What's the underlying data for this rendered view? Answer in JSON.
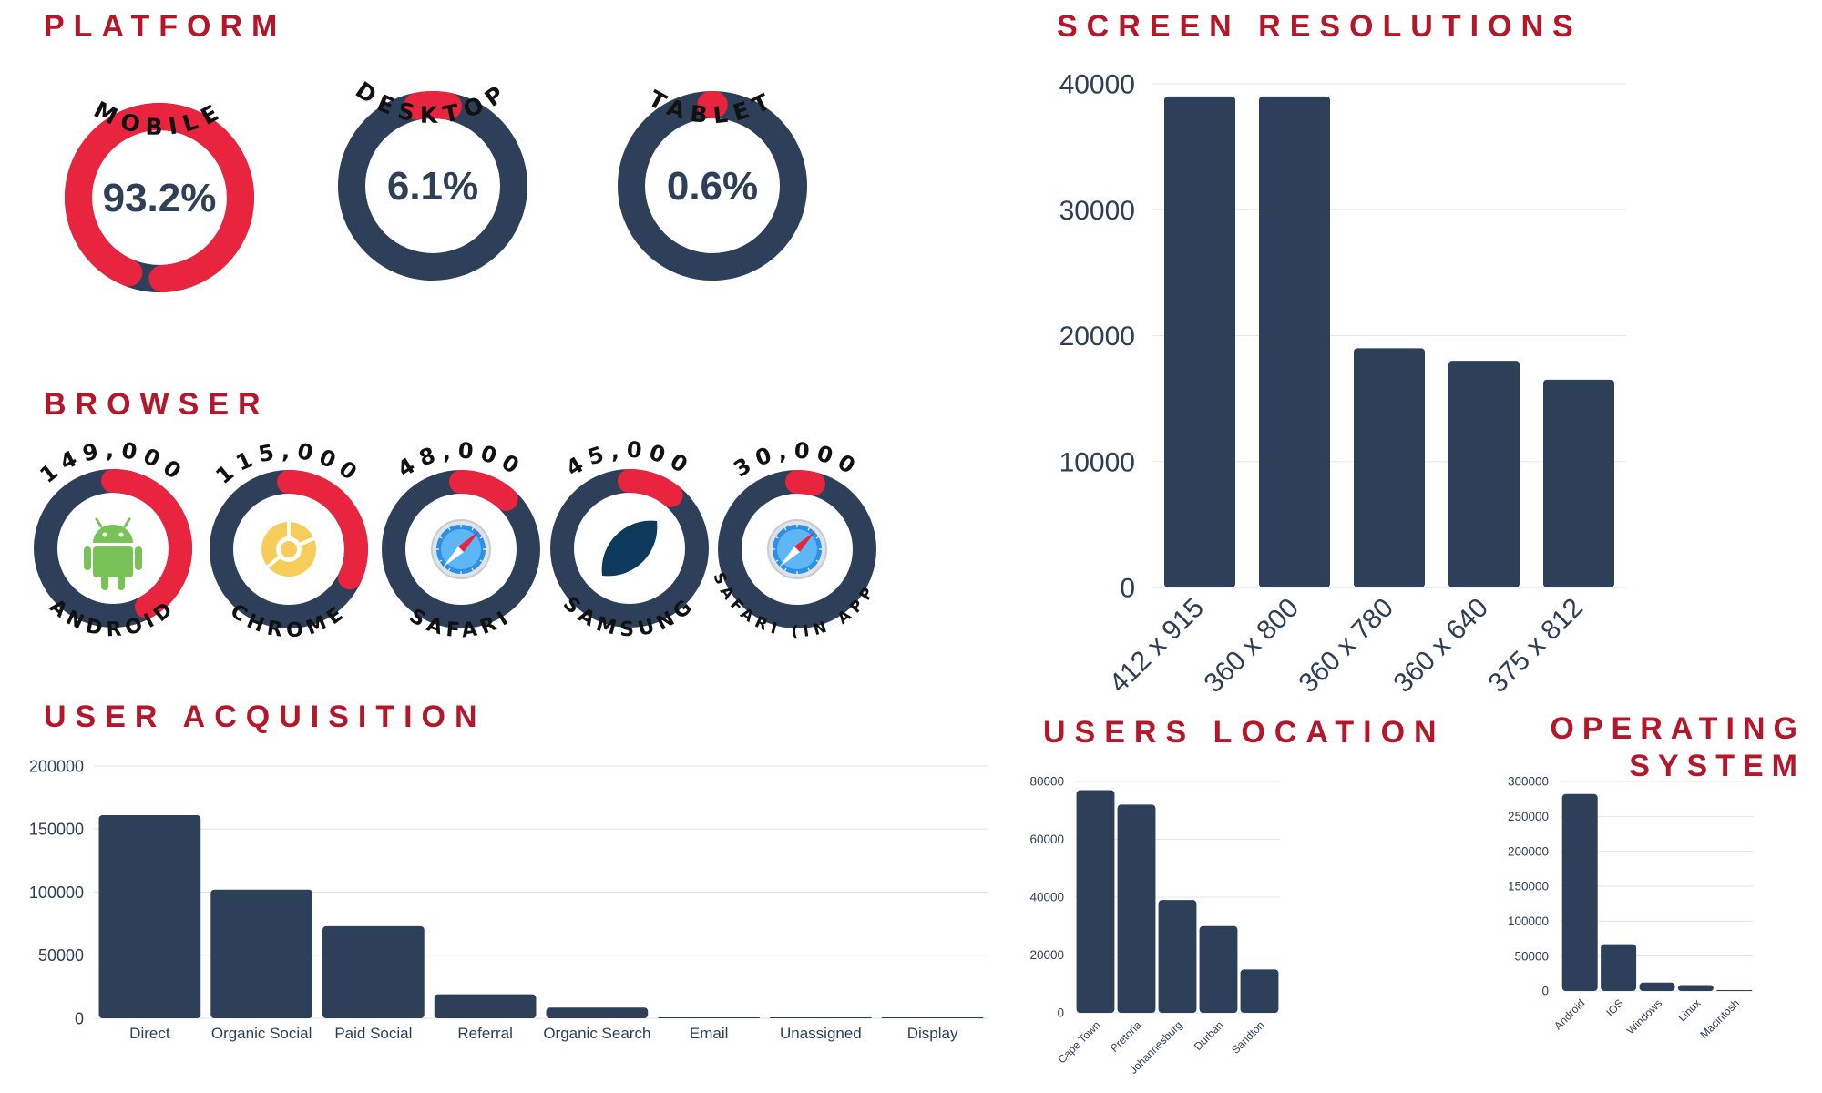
{
  "titles": {
    "platform": "PLATFORM",
    "browser": "BROWSER",
    "user_acquisition": "USER ACQUISITION",
    "screen_resolutions": "SCREEN RESOLUTIONS",
    "users_location": "USERS LOCATION",
    "operating_system_line1": "OPERATING",
    "operating_system_line2": "SYSTEM"
  },
  "colors": {
    "navy": "#2e4059",
    "accent": "#e8243f",
    "title": "#b5172a",
    "android_green": "#78c257",
    "chrome_yellow": "#f7cd5a",
    "samsung_blue": "#0d3a5c"
  },
  "platform": [
    {
      "label": "MOBILE",
      "pct_text": "93.2%",
      "value": 93.2
    },
    {
      "label": "DESKTOP",
      "pct_text": "6.1%",
      "value": 6.1
    },
    {
      "label": "TABLET",
      "pct_text": "0.6%",
      "value": 0.6
    }
  ],
  "browser": [
    {
      "label": "ANDROID",
      "count": "149,000",
      "value": 149000,
      "icon": "android-icon"
    },
    {
      "label": "CHROME",
      "count": "115,000",
      "value": 115000,
      "icon": "chrome-icon"
    },
    {
      "label": "SAFARI",
      "count": "48,000",
      "value": 48000,
      "icon": "safari-icon"
    },
    {
      "label": "SAMSUNG",
      "count": "45,000",
      "value": 45000,
      "icon": "samsung-icon"
    },
    {
      "label": "SAFARI (IN APP)",
      "count": "30,000",
      "value": 30000,
      "icon": "safari-icon"
    }
  ],
  "chart_data": [
    {
      "id": "screen_resolutions",
      "type": "bar",
      "title": "SCREEN RESOLUTIONS",
      "categories": [
        "412 x 915",
        "360 x 800",
        "360 x 780",
        "360 x 640",
        "375 x 812"
      ],
      "values": [
        39000,
        39000,
        19000,
        18000,
        16500
      ],
      "ylim": [
        0,
        40000
      ],
      "yticks": [
        "0",
        "10000",
        "20000",
        "30000",
        "40000"
      ],
      "grid": true
    },
    {
      "id": "user_acquisition",
      "type": "bar",
      "title": "USER ACQUISITION",
      "categories": [
        "Direct",
        "Organic Social",
        "Paid Social",
        "Referral",
        "Organic Search",
        "Email",
        "Unassigned",
        "Display"
      ],
      "values": [
        161000,
        102000,
        73000,
        19000,
        8500,
        600,
        300,
        200
      ],
      "ylim": [
        0,
        200000
      ],
      "yticks": [
        "0",
        "50000",
        "100000",
        "150000",
        "200000"
      ],
      "grid": true
    },
    {
      "id": "users_location",
      "type": "bar",
      "title": "USERS LOCATION",
      "categories": [
        "Cape Town",
        "Pretoria",
        "Johannesburg",
        "Durban",
        "Sandton"
      ],
      "values": [
        77000,
        72000,
        39000,
        30000,
        15000
      ],
      "ylim": [
        0,
        80000
      ],
      "yticks": [
        "0",
        "20000",
        "40000",
        "60000",
        "80000"
      ],
      "grid": true
    },
    {
      "id": "operating_system",
      "type": "bar",
      "title": "OPERATING SYSTEM",
      "categories": [
        "Android",
        "IOS",
        "Windows",
        "Linux",
        "Macintosh"
      ],
      "values": [
        282000,
        67000,
        12000,
        8500,
        1200
      ],
      "ylim": [
        0,
        300000
      ],
      "yticks": [
        "0",
        "50000",
        "100000",
        "150000",
        "200000",
        "250000",
        "300000"
      ],
      "grid": true
    }
  ]
}
